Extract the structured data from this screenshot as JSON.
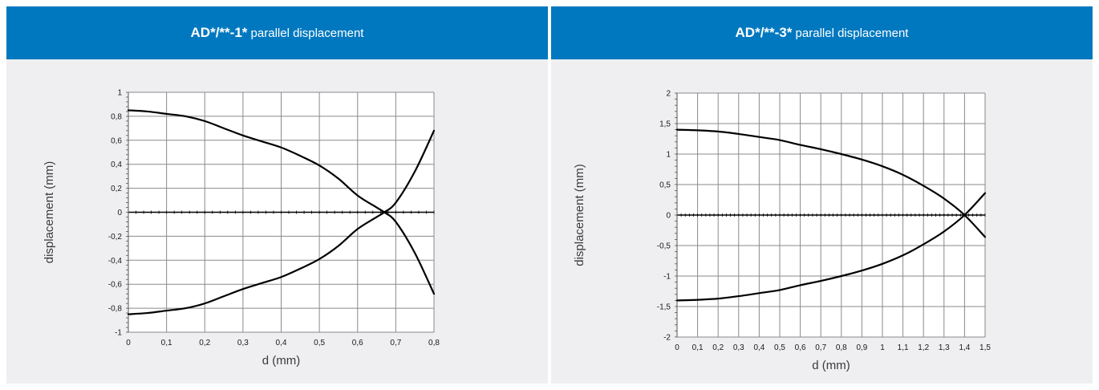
{
  "panels": [
    {
      "title_main": "AD*/**-1*",
      "title_sub": " parallel displacement"
    },
    {
      "title_main": "AD*/**-3*",
      "title_sub": " parallel displacement"
    }
  ],
  "chart_data": [
    {
      "type": "line",
      "xlabel": "d (mm)",
      "ylabel": "displacement (mm)",
      "xlim": [
        0,
        0.8
      ],
      "ylim": [
        -1,
        1
      ],
      "x_ticks": [
        "0",
        "0,1",
        "0,2",
        "0,3",
        "0,4",
        "0,5",
        "0,6",
        "0,7",
        "0,8"
      ],
      "y_ticks": [
        "1",
        "0,8",
        "0,6",
        "0,4",
        "0,2",
        "0",
        "-0,2",
        "-0,4",
        "-0,6",
        "-0,8",
        "-1"
      ],
      "grid": true,
      "series": [
        {
          "x": [
            0,
            0.05,
            0.1,
            0.15,
            0.2,
            0.25,
            0.3,
            0.35,
            0.4,
            0.45,
            0.5,
            0.55,
            0.6,
            0.65,
            0.67,
            0.7,
            0.75,
            0.8
          ],
          "y": [
            0.85,
            0.84,
            0.82,
            0.8,
            0.76,
            0.7,
            0.64,
            0.59,
            0.54,
            0.47,
            0.39,
            0.28,
            0.14,
            0.04,
            0.0,
            -0.08,
            -0.34,
            -0.68
          ]
        },
        {
          "x": [
            0,
            0.05,
            0.1,
            0.15,
            0.2,
            0.25,
            0.3,
            0.35,
            0.4,
            0.45,
            0.5,
            0.55,
            0.6,
            0.65,
            0.67,
            0.7,
            0.75,
            0.8
          ],
          "y": [
            -0.85,
            -0.84,
            -0.82,
            -0.8,
            -0.76,
            -0.7,
            -0.64,
            -0.59,
            -0.54,
            -0.47,
            -0.39,
            -0.28,
            -0.14,
            -0.04,
            0.0,
            0.08,
            0.34,
            0.68
          ]
        }
      ]
    },
    {
      "type": "line",
      "xlabel": "d (mm)",
      "ylabel": "displacement  (mm)",
      "xlim": [
        0,
        1.5
      ],
      "ylim": [
        -2,
        2
      ],
      "x_ticks": [
        "0",
        "0,1",
        "0,2",
        "0,3",
        "0,4",
        "0,5",
        "0,6",
        "0,7",
        "0,8",
        "0,9",
        "1",
        "1,1",
        "1,2",
        "1,3",
        "1,4",
        "1,5"
      ],
      "y_ticks": [
        "2",
        "1,5",
        "1",
        "0,5",
        "0",
        "-0,5",
        "-1",
        "-1,5",
        "-2"
      ],
      "grid": true,
      "series": [
        {
          "x": [
            0,
            0.1,
            0.2,
            0.3,
            0.4,
            0.5,
            0.6,
            0.7,
            0.8,
            0.9,
            1.0,
            1.1,
            1.2,
            1.3,
            1.4,
            1.5
          ],
          "y": [
            1.4,
            1.39,
            1.37,
            1.33,
            1.28,
            1.23,
            1.15,
            1.08,
            1.0,
            0.91,
            0.8,
            0.66,
            0.48,
            0.27,
            0.0,
            -0.36
          ]
        },
        {
          "x": [
            0,
            0.1,
            0.2,
            0.3,
            0.4,
            0.5,
            0.6,
            0.7,
            0.8,
            0.9,
            1.0,
            1.1,
            1.2,
            1.3,
            1.4,
            1.5
          ],
          "y": [
            -1.4,
            -1.39,
            -1.37,
            -1.33,
            -1.28,
            -1.23,
            -1.15,
            -1.08,
            -1.0,
            -0.91,
            -0.8,
            -0.66,
            -0.48,
            -0.27,
            0.0,
            0.36
          ]
        }
      ]
    }
  ]
}
